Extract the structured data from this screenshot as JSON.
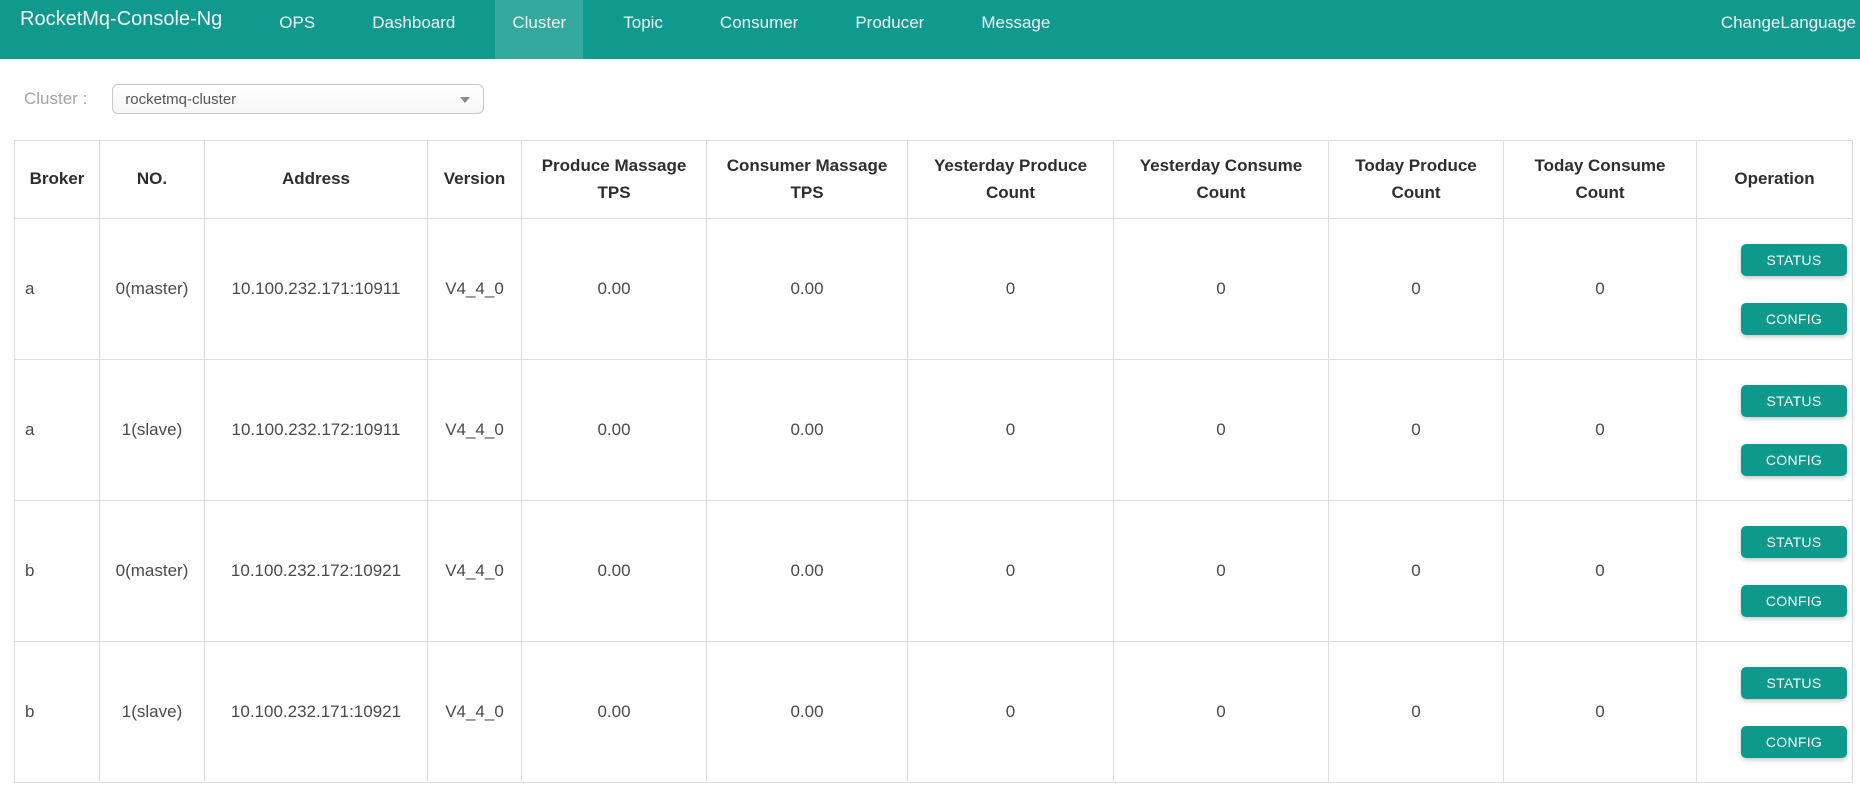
{
  "navbar": {
    "brand": "RocketMq-Console-Ng",
    "items": [
      {
        "label": "OPS",
        "active": false
      },
      {
        "label": "Dashboard",
        "active": false
      },
      {
        "label": "Cluster",
        "active": true
      },
      {
        "label": "Topic",
        "active": false
      },
      {
        "label": "Consumer",
        "active": false
      },
      {
        "label": "Producer",
        "active": false
      },
      {
        "label": "Message",
        "active": false
      }
    ],
    "change_language": "ChangeLanguage"
  },
  "filter": {
    "label": "Cluster :",
    "selected_option": "rocketmq-cluster"
  },
  "table": {
    "columns": [
      "Broker",
      "NO.",
      "Address",
      "Version",
      "Produce Massage TPS",
      "Consumer Massage TPS",
      "Yesterday Produce Count",
      "Yesterday Consume Count",
      "Today Produce Count",
      "Today Consume Count",
      "Operation"
    ],
    "rows": [
      {
        "broker": "a",
        "no": "0(master)",
        "address": "10.100.232.171:10911",
        "version": "V4_4_0",
        "produce_tps": "0.00",
        "consume_tps": "0.00",
        "yesterday_produce": "0",
        "yesterday_consume": "0",
        "today_produce": "0",
        "today_consume": "0"
      },
      {
        "broker": "a",
        "no": "1(slave)",
        "address": "10.100.232.172:10911",
        "version": "V4_4_0",
        "produce_tps": "0.00",
        "consume_tps": "0.00",
        "yesterday_produce": "0",
        "yesterday_consume": "0",
        "today_produce": "0",
        "today_consume": "0"
      },
      {
        "broker": "b",
        "no": "0(master)",
        "address": "10.100.232.172:10921",
        "version": "V4_4_0",
        "produce_tps": "0.00",
        "consume_tps": "0.00",
        "yesterday_produce": "0",
        "yesterday_consume": "0",
        "today_produce": "0",
        "today_consume": "0"
      },
      {
        "broker": "b",
        "no": "1(slave)",
        "address": "10.100.232.171:10921",
        "version": "V4_4_0",
        "produce_tps": "0.00",
        "consume_tps": "0.00",
        "yesterday_produce": "0",
        "yesterday_consume": "0",
        "today_produce": "0",
        "today_consume": "0"
      }
    ],
    "operations": {
      "status": "STATUS",
      "config": "CONFIG"
    }
  },
  "colors": {
    "navbar_bg": "#109a8e",
    "active_tab_bg": "#2fa89e",
    "button_bg": "#0d9a8d",
    "table_border": "#dddddd",
    "header_text": "#2e2e2e",
    "cell_text": "#4a4a4a",
    "filter_label_text": "#a3a3a3"
  }
}
